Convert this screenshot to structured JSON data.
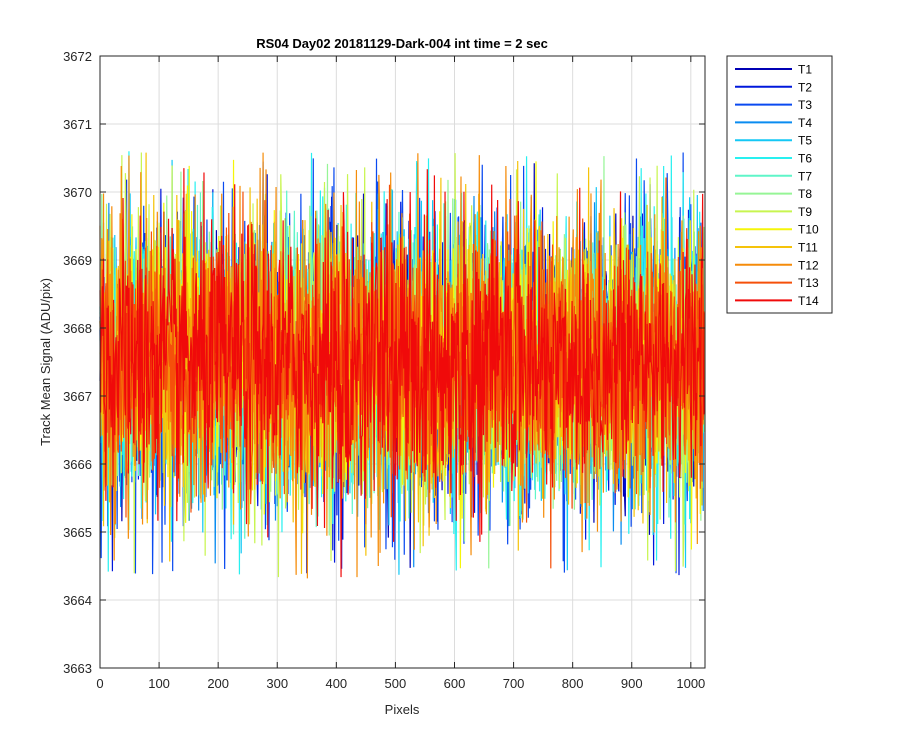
{
  "chart_data": {
    "type": "line",
    "title": "RS04 Day02 20181129-Dark-004 int time = 2 sec",
    "xlabel": "Pixels",
    "ylabel": "Track Mean Signal (ADU/pix)",
    "xlim": [
      0,
      1024
    ],
    "ylim": [
      3663,
      3672
    ],
    "xticks": [
      0,
      100,
      200,
      300,
      400,
      500,
      600,
      700,
      800,
      900,
      1000
    ],
    "yticks": [
      3663,
      3664,
      3665,
      3666,
      3667,
      3668,
      3669,
      3670,
      3671,
      3672
    ],
    "grid": true,
    "legend_position": "outside-top-right",
    "noise_model": {
      "n_points": 1024,
      "mean": 3667.5,
      "spread_core": 1.05,
      "spread_min": 3664.3,
      "spread_max": 3670.6
    },
    "series": [
      {
        "name": "T1",
        "color": "#0000b4"
      },
      {
        "name": "T2",
        "color": "#0018dc"
      },
      {
        "name": "T3",
        "color": "#0a4af0"
      },
      {
        "name": "T4",
        "color": "#0a8cf0"
      },
      {
        "name": "T5",
        "color": "#14c8f5"
      },
      {
        "name": "T6",
        "color": "#28f0f0"
      },
      {
        "name": "T7",
        "color": "#5ff5c8"
      },
      {
        "name": "T8",
        "color": "#96f596"
      },
      {
        "name": "T9",
        "color": "#c8f550"
      },
      {
        "name": "T10",
        "color": "#f5f50a"
      },
      {
        "name": "T11",
        "color": "#f5c30a"
      },
      {
        "name": "T12",
        "color": "#f58c0a"
      },
      {
        "name": "T13",
        "color": "#f5500a"
      },
      {
        "name": "T14",
        "color": "#f00a0a"
      }
    ]
  }
}
